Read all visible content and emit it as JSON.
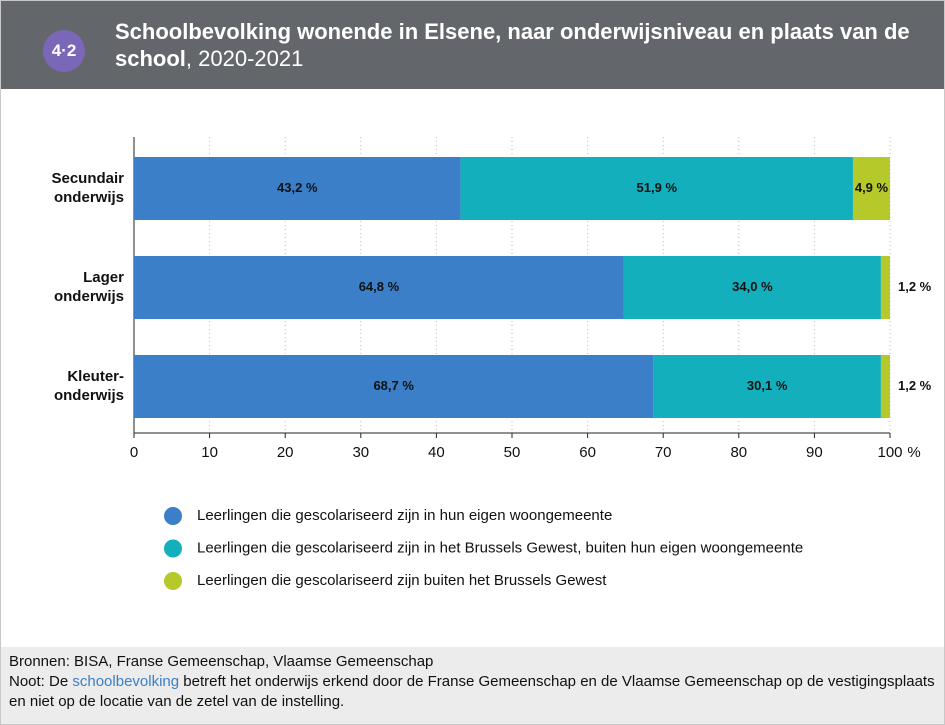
{
  "figure_number": "4·2",
  "header": {
    "title": "Schoolbevolking wonende in Elsene, naar onderwijsniveau en plaats van de school",
    "title_suffix": ", 2020-2021"
  },
  "footer": {
    "sources": "Bronnen: BISA, Franse Gemeenschap, Vlaamse Gemeenschap",
    "note_prefix": "Noot: De",
    "note_link": "schoolbevolking",
    "note_suffix": "betreft het onderwijs erkend door de Franse Gemeenschap en de Vlaamse Gemeenschap op de vestigingsplaats en niet op de locatie van de zetel van de instelling."
  },
  "chart_data": {
    "type": "stacked_barh",
    "categories": [
      "Secundair\nonderwijs",
      "Lager\nonderwijs",
      "Kleuter-\nonderwijs"
    ],
    "series": [
      {
        "name": "Leerlingen die gescolariseerd zijn in hun eigen woongemeente",
        "color": "#3a7fc8",
        "values": [
          43.2,
          64.8,
          68.7
        ],
        "value_labels": [
          "43,2 %",
          "64,8 %",
          "68,7 %"
        ]
      },
      {
        "name": "Leerlingen die gescolariseerd zijn in het Brussels Gewest, buiten hun eigen woongemeente",
        "color": "#13afbc",
        "values": [
          51.9,
          34.0,
          30.1
        ],
        "value_labels": [
          "51,9 %",
          "34,0 %",
          "30,1 %"
        ]
      },
      {
        "name": "Leerlingen die gescolariseerd zijn buiten het Brussels Gewest",
        "color": "#b6c92a",
        "values": [
          4.9,
          1.2,
          1.2
        ],
        "value_labels": [
          "4,9 %",
          "1,2 %",
          "1,2 %"
        ]
      }
    ],
    "xlim": [
      0,
      100
    ],
    "xticks": [
      0,
      10,
      20,
      30,
      40,
      50,
      60,
      70,
      80,
      90,
      100
    ],
    "x_unit": "%",
    "grid": true,
    "legend": "bottom"
  }
}
